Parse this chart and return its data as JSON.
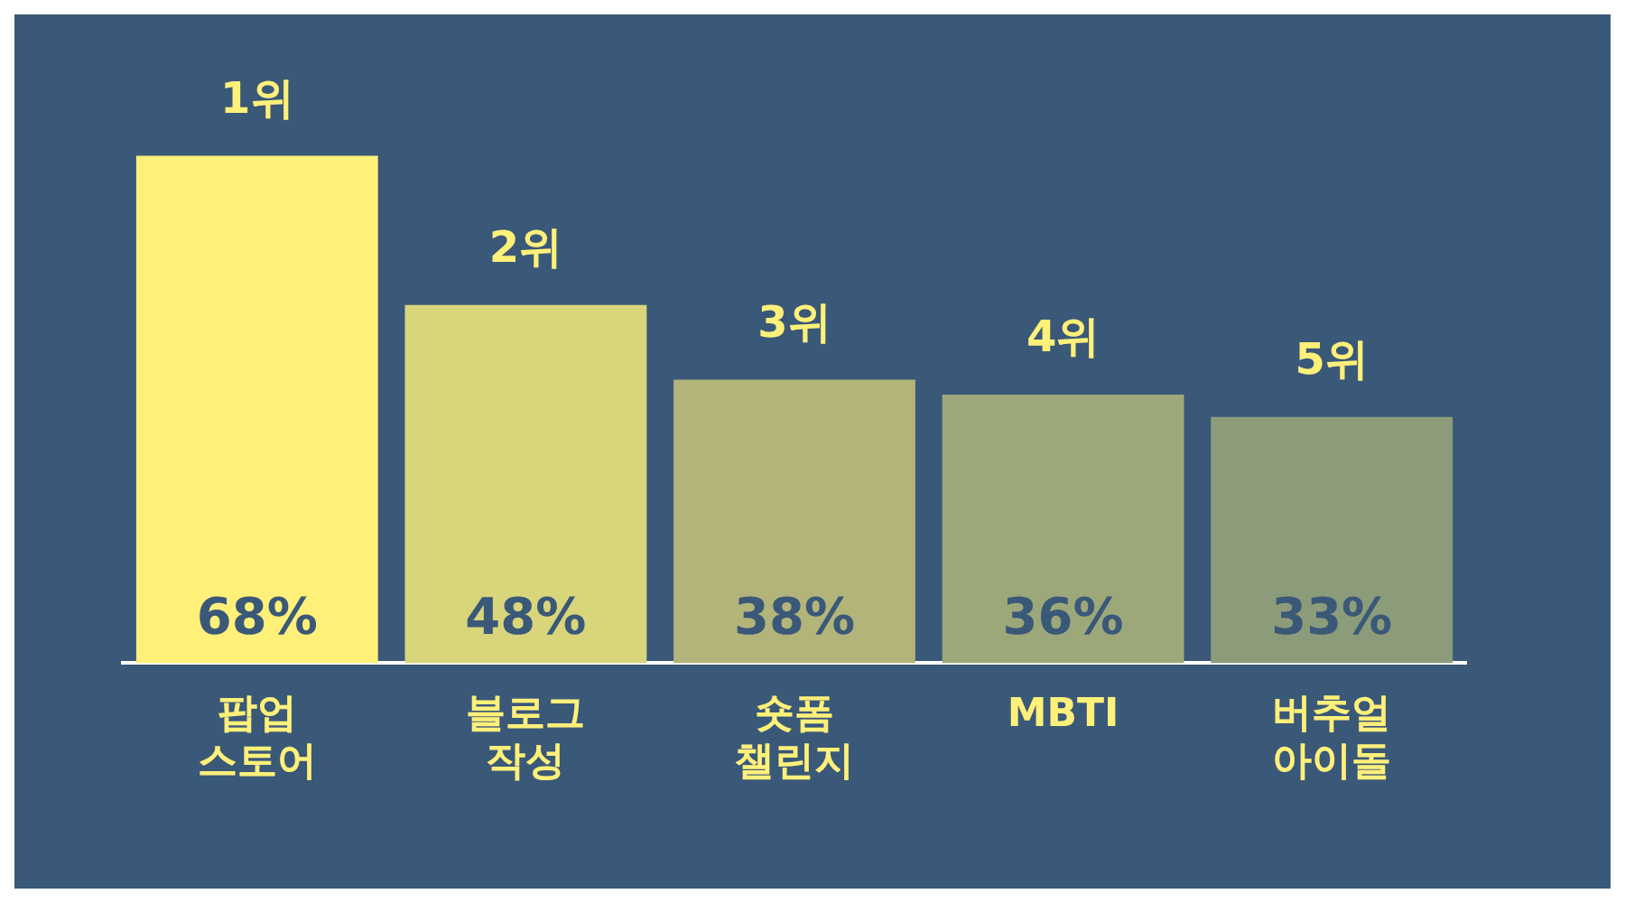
{
  "chart_data": {
    "type": "bar",
    "categories": [
      "팝업 스토어",
      "블로그 작성",
      "숏폼 챌린지",
      "MBTI",
      "버추얼 아이돌"
    ],
    "values": [
      68,
      48,
      38,
      36,
      33
    ],
    "colors": [
      "#fff07a",
      "#d9d57a",
      "#b3b47a",
      "#9da87a",
      "#8c9c7a"
    ],
    "value_labels": [
      "68%",
      "48%",
      "38%",
      "36%",
      "33%"
    ],
    "annotations": [
      {
        "text": "1위",
        "x": "팝업 스토어",
        "y": 68
      },
      {
        "text": "2위",
        "x": "블로그 작성",
        "y": 48
      },
      {
        "text": "3위",
        "x": "숏폼 챌린지",
        "y": 38
      },
      {
        "text": "4위",
        "x": "MBTI",
        "y": 36
      },
      {
        "text": "5위",
        "x": "버추얼 아이돌",
        "y": 33
      }
    ],
    "grid": false,
    "legend": false
  }
}
